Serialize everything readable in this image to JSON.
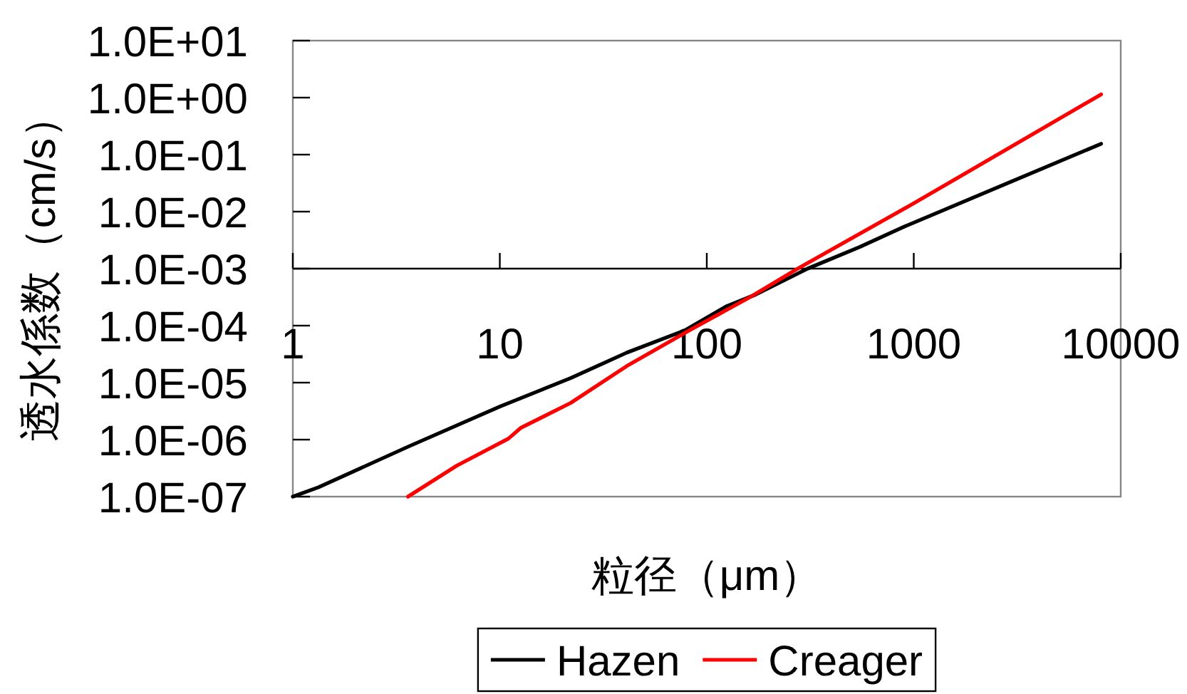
{
  "chart_data": {
    "type": "line",
    "xlabel": "粒径（μm）",
    "ylabel": "透水係数（cm/s）",
    "log": "xy",
    "xlim": [
      1,
      10000
    ],
    "ylim": [
      1e-07,
      10
    ],
    "xticks": [
      1,
      10,
      100,
      1000,
      10000
    ],
    "yticks": [
      {
        "value": 10,
        "label": "1.0E+01"
      },
      {
        "value": 1,
        "label": "1.0E+00"
      },
      {
        "value": 0.1,
        "label": "1.0E-01"
      },
      {
        "value": 0.01,
        "label": "1.0E-02"
      },
      {
        "value": 0.001,
        "label": "1.0E-03"
      },
      {
        "value": 0.0001,
        "label": "1.0E-04"
      },
      {
        "value": 1e-05,
        "label": "1.0E-05"
      },
      {
        "value": 1e-06,
        "label": "1.0E-06"
      },
      {
        "value": 1e-07,
        "label": "1.0E-07"
      }
    ],
    "legend": "bottom",
    "series": [
      {
        "name": "Hazen",
        "color": "#000000",
        "x": [
          1,
          1.33,
          3.6,
          10,
          22,
          41,
          78,
          125,
          172,
          307,
          548,
          883,
          8040
        ],
        "values": [
          1e-07,
          1.46e-07,
          7.5e-07,
          3.8e-06,
          1.2e-05,
          3.35e-05,
          8.2e-05,
          0.00022,
          0.00035,
          0.001,
          0.0024,
          0.0053,
          0.155
        ]
      },
      {
        "name": "Creager",
        "color": "#ff0000",
        "x": [
          3.6,
          6.2,
          11,
          12.6,
          22,
          41,
          82,
          163,
          275,
          977,
          8040
        ],
        "values": [
          1e-07,
          3.5e-07,
          1.04e-06,
          1.6e-06,
          4.4e-06,
          1.95e-05,
          8.2e-05,
          0.00032,
          0.001,
          0.0133,
          1.14
        ]
      }
    ]
  }
}
